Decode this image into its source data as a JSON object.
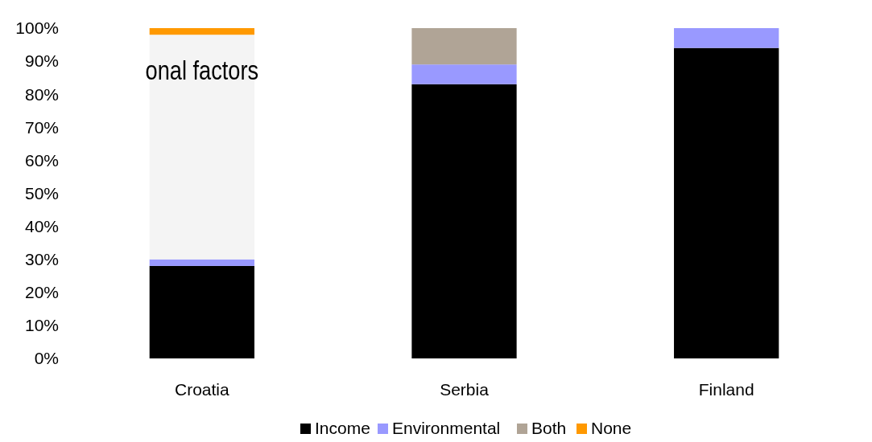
{
  "chart_data": {
    "type": "bar",
    "stacked": true,
    "categories": [
      "Croatia",
      "Serbia",
      "Finland"
    ],
    "series": [
      {
        "name": "Income",
        "color": "#000000",
        "values": [
          28,
          83,
          94
        ]
      },
      {
        "name": "Environmental",
        "color": "#9999ff",
        "values": [
          2,
          6,
          6
        ]
      },
      {
        "name": "Both",
        "color": "#b0a496",
        "colors": [
          "#f4f4f4",
          "#b0a496",
          "#b0a496"
        ],
        "values": [
          68,
          11,
          0
        ]
      },
      {
        "name": "None",
        "color": "#ff9900",
        "values": [
          2,
          0,
          0
        ]
      }
    ],
    "ylim": [
      0,
      100
    ],
    "yticks": [
      {
        "value": 0,
        "label": "0%"
      },
      {
        "value": 10,
        "label": "10%"
      },
      {
        "value": 20,
        "label": "20%"
      },
      {
        "value": 30,
        "label": "30%"
      },
      {
        "value": 40,
        "label": "40%"
      },
      {
        "value": 50,
        "label": "50%"
      },
      {
        "value": 60,
        "label": "60%"
      },
      {
        "value": 70,
        "label": "70%"
      },
      {
        "value": 80,
        "label": "80%"
      },
      {
        "value": 90,
        "label": "90%"
      },
      {
        "value": 100,
        "label": "100%"
      }
    ],
    "annotations": [
      "onal factors"
    ],
    "legend": "bottom"
  }
}
